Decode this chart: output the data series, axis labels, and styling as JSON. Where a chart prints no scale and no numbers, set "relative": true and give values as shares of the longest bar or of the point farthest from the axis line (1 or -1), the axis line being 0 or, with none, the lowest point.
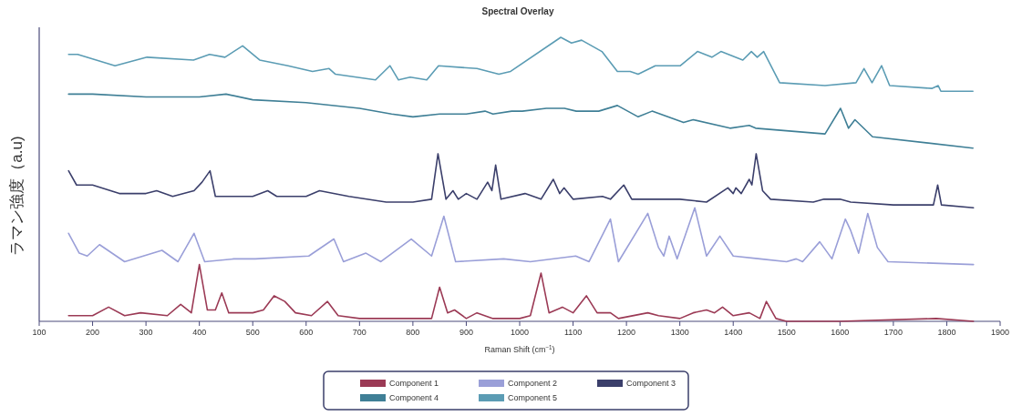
{
  "chart_data": {
    "type": "line",
    "title": "Spectral Overlay",
    "xlabel": "Raman Shift (cm$^{−1}$)",
    "ylabel": "ラマン強度（a.u)",
    "relative": true,
    "xlim": [
      100,
      1900
    ],
    "xticks": [
      100,
      200,
      300,
      400,
      500,
      600,
      700,
      800,
      900,
      1000,
      1100,
      1200,
      1300,
      1400,
      1500,
      1600,
      1700,
      1800,
      1900
    ],
    "legend": "bottom",
    "series": [
      {
        "name": "Component 1",
        "color": "#9b3a55",
        "x": [
          155,
          200,
          230,
          260,
          290,
          340,
          365,
          385,
          400,
          415,
          430,
          442,
          455,
          500,
          520,
          540,
          560,
          580,
          610,
          640,
          660,
          700,
          800,
          835,
          850,
          865,
          878,
          900,
          920,
          950,
          1000,
          1020,
          1040,
          1055,
          1080,
          1100,
          1125,
          1145,
          1170,
          1185,
          1240,
          1260,
          1300,
          1325,
          1350,
          1365,
          1380,
          1400,
          1430,
          1450,
          1462,
          1480,
          1500,
          1600,
          1780,
          1850
        ],
        "values": [
          0.02,
          0.02,
          0.05,
          0.02,
          0.03,
          0.02,
          0.06,
          0.03,
          0.2,
          0.04,
          0.04,
          0.1,
          0.03,
          0.03,
          0.04,
          0.09,
          0.07,
          0.03,
          0.02,
          0.07,
          0.02,
          0.01,
          0.01,
          0.01,
          0.12,
          0.03,
          0.04,
          0.01,
          0.03,
          0.01,
          0.01,
          0.02,
          0.17,
          0.03,
          0.05,
          0.03,
          0.09,
          0.03,
          0.03,
          0.01,
          0.03,
          0.02,
          0.01,
          0.03,
          0.04,
          0.03,
          0.05,
          0.02,
          0.03,
          0.01,
          0.07,
          0.01,
          0.0,
          0.0,
          0.01,
          0.0
        ]
      },
      {
        "name": "Component 2",
        "color": "#9a9fd8",
        "x": [
          155,
          175,
          190,
          213,
          260,
          330,
          360,
          390,
          410,
          465,
          505,
          605,
          652,
          670,
          712,
          740,
          797,
          835,
          858,
          880,
          970,
          1020,
          1105,
          1130,
          1170,
          1185,
          1240,
          1260,
          1270,
          1280,
          1295,
          1328,
          1350,
          1375,
          1400,
          1450,
          1500,
          1518,
          1530,
          1562,
          1585,
          1610,
          1620,
          1635,
          1652,
          1670,
          1690,
          1850
        ],
        "values": [
          0.31,
          0.24,
          0.23,
          0.27,
          0.21,
          0.25,
          0.21,
          0.31,
          0.21,
          0.22,
          0.22,
          0.23,
          0.29,
          0.21,
          0.24,
          0.21,
          0.29,
          0.23,
          0.37,
          0.21,
          0.22,
          0.21,
          0.23,
          0.21,
          0.36,
          0.21,
          0.38,
          0.26,
          0.23,
          0.3,
          0.22,
          0.4,
          0.23,
          0.3,
          0.23,
          0.22,
          0.21,
          0.22,
          0.21,
          0.28,
          0.22,
          0.36,
          0.32,
          0.24,
          0.38,
          0.26,
          0.21,
          0.2
        ]
      },
      {
        "name": "Component 3",
        "color": "#3b3f6b",
        "x": [
          155,
          170,
          200,
          250,
          300,
          320,
          350,
          390,
          405,
          420,
          430,
          500,
          528,
          545,
          600,
          625,
          680,
          750,
          800,
          835,
          847,
          862,
          875,
          885,
          900,
          920,
          940,
          948,
          955,
          965,
          1010,
          1040,
          1063,
          1075,
          1083,
          1100,
          1155,
          1170,
          1195,
          1210,
          1300,
          1350,
          1390,
          1400,
          1405,
          1415,
          1430,
          1435,
          1443,
          1455,
          1470,
          1550,
          1570,
          1600,
          1620,
          1700,
          1775,
          1783,
          1790,
          1850
        ],
        "values": [
          0.53,
          0.48,
          0.48,
          0.45,
          0.45,
          0.46,
          0.44,
          0.46,
          0.49,
          0.53,
          0.44,
          0.44,
          0.46,
          0.44,
          0.44,
          0.46,
          0.44,
          0.42,
          0.42,
          0.43,
          0.59,
          0.43,
          0.46,
          0.43,
          0.45,
          0.43,
          0.49,
          0.46,
          0.55,
          0.43,
          0.45,
          0.43,
          0.5,
          0.45,
          0.47,
          0.43,
          0.44,
          0.43,
          0.48,
          0.43,
          0.43,
          0.42,
          0.47,
          0.45,
          0.47,
          0.45,
          0.5,
          0.48,
          0.59,
          0.46,
          0.43,
          0.42,
          0.43,
          0.43,
          0.42,
          0.41,
          0.41,
          0.48,
          0.41,
          0.4
        ]
      },
      {
        "name": "Component 4",
        "color": "#3f7f96",
        "x": [
          155,
          200,
          300,
          400,
          450,
          500,
          600,
          700,
          760,
          800,
          850,
          900,
          935,
          950,
          985,
          1005,
          1050,
          1084,
          1106,
          1148,
          1183,
          1222,
          1248,
          1307,
          1325,
          1394,
          1430,
          1442,
          1572,
          1601,
          1616,
          1628,
          1661,
          1849
        ],
        "values": [
          0.8,
          0.8,
          0.79,
          0.79,
          0.8,
          0.78,
          0.77,
          0.75,
          0.73,
          0.72,
          0.73,
          0.73,
          0.74,
          0.73,
          0.74,
          0.74,
          0.75,
          0.75,
          0.74,
          0.74,
          0.76,
          0.72,
          0.74,
          0.7,
          0.71,
          0.68,
          0.69,
          0.68,
          0.66,
          0.75,
          0.68,
          0.71,
          0.65,
          0.61
        ]
      },
      {
        "name": "Component 5",
        "color": "#5b9cb4",
        "x": [
          155,
          172,
          242,
          302,
          389,
          419,
          448,
          481,
          513,
          566,
          612,
          643,
          655,
          730,
          757,
          773,
          795,
          826,
          848,
          920,
          961,
          983,
          1077,
          1097,
          1116,
          1154,
          1183,
          1207,
          1222,
          1254,
          1301,
          1333,
          1360,
          1377,
          1418,
          1434,
          1445,
          1457,
          1487,
          1572,
          1630,
          1645,
          1660,
          1678,
          1693,
          1772,
          1784,
          1789,
          1849
        ],
        "values": [
          0.94,
          0.94,
          0.9,
          0.93,
          0.92,
          0.94,
          0.93,
          0.97,
          0.92,
          0.9,
          0.88,
          0.89,
          0.87,
          0.85,
          0.9,
          0.85,
          0.86,
          0.85,
          0.9,
          0.89,
          0.87,
          0.88,
          1.0,
          0.98,
          0.99,
          0.95,
          0.88,
          0.88,
          0.87,
          0.9,
          0.9,
          0.95,
          0.93,
          0.95,
          0.92,
          0.95,
          0.93,
          0.95,
          0.84,
          0.83,
          0.84,
          0.89,
          0.84,
          0.9,
          0.83,
          0.82,
          0.83,
          0.81,
          0.81
        ]
      }
    ]
  }
}
